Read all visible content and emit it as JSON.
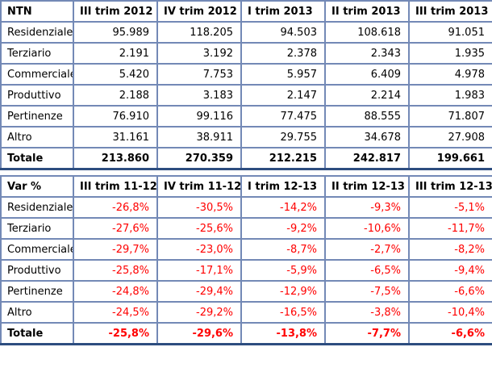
{
  "colors": {
    "border": "#7389b6",
    "outer_bottom_border": "#2d4d7f",
    "text": "#000000",
    "negative_value": "#ff0000",
    "background": "#ffffff"
  },
  "tables": [
    {
      "id": "ntn",
      "title_cell": "NTN",
      "value_color": "#000000",
      "headers": [
        "III trim 2012",
        "IV trim 2012",
        "I trim 2013",
        "II trim 2013",
        "III trim 2013"
      ],
      "rows": [
        {
          "label": "Residenziale",
          "values": [
            "95.989",
            "118.205",
            "94.503",
            "108.618",
            "91.051"
          ],
          "total": false
        },
        {
          "label": "Terziario",
          "values": [
            "2.191",
            "3.192",
            "2.378",
            "2.343",
            "1.935"
          ],
          "total": false
        },
        {
          "label": "Commerciale",
          "values": [
            "5.420",
            "7.753",
            "5.957",
            "6.409",
            "4.978"
          ],
          "total": false
        },
        {
          "label": "Produttivo",
          "values": [
            "2.188",
            "3.183",
            "2.147",
            "2.214",
            "1.983"
          ],
          "total": false
        },
        {
          "label": "Pertinenze",
          "values": [
            "76.910",
            "99.116",
            "77.475",
            "88.555",
            "71.807"
          ],
          "total": false
        },
        {
          "label": "Altro",
          "values": [
            "31.161",
            "38.911",
            "29.755",
            "34.678",
            "27.908"
          ],
          "total": false
        },
        {
          "label": "Totale",
          "values": [
            "213.860",
            "270.359",
            "212.215",
            "242.817",
            "199.661"
          ],
          "total": true
        }
      ]
    },
    {
      "id": "var",
      "title_cell": "Var %",
      "value_color": "#ff0000",
      "headers": [
        "III trim 11-12",
        "IV trim 11-12",
        "I trim 12-13",
        "II trim 12-13",
        "III trim 12-13"
      ],
      "rows": [
        {
          "label": "Residenziale",
          "values": [
            "-26,8%",
            "-30,5%",
            "-14,2%",
            "-9,3%",
            "-5,1%"
          ],
          "total": false
        },
        {
          "label": "Terziario",
          "values": [
            "-27,6%",
            "-25,6%",
            "-9,2%",
            "-10,6%",
            "-11,7%"
          ],
          "total": false
        },
        {
          "label": "Commerciale",
          "values": [
            "-29,7%",
            "-23,0%",
            "-8,7%",
            "-2,7%",
            "-8,2%"
          ],
          "total": false
        },
        {
          "label": "Produttivo",
          "values": [
            "-25,8%",
            "-17,1%",
            "-5,9%",
            "-6,5%",
            "-9,4%"
          ],
          "total": false
        },
        {
          "label": "Pertinenze",
          "values": [
            "-24,8%",
            "-29,4%",
            "-12,9%",
            "-7,5%",
            "-6,6%"
          ],
          "total": false
        },
        {
          "label": "Altro",
          "values": [
            "-24,5%",
            "-29,2%",
            "-16,5%",
            "-3,8%",
            "-10,4%"
          ],
          "total": false
        },
        {
          "label": "Totale",
          "values": [
            "-25,8%",
            "-29,6%",
            "-13,8%",
            "-7,7%",
            "-6,6%"
          ],
          "total": true
        }
      ]
    }
  ],
  "chart_data": [
    {
      "type": "table",
      "title": "NTN",
      "categories": [
        "Residenziale",
        "Terziario",
        "Commerciale",
        "Produttivo",
        "Pertinenze",
        "Altro",
        "Totale"
      ],
      "columns": [
        "III trim 2012",
        "IV trim 2012",
        "I trim 2013",
        "II trim 2013",
        "III trim 2013"
      ],
      "series": [
        {
          "name": "Residenziale",
          "values": [
            95989,
            118205,
            94503,
            108618,
            91051
          ]
        },
        {
          "name": "Terziario",
          "values": [
            2191,
            3192,
            2378,
            2343,
            1935
          ]
        },
        {
          "name": "Commerciale",
          "values": [
            5420,
            7753,
            5957,
            6409,
            4978
          ]
        },
        {
          "name": "Produttivo",
          "values": [
            2188,
            3183,
            2147,
            2214,
            1983
          ]
        },
        {
          "name": "Pertinenze",
          "values": [
            76910,
            99116,
            77475,
            88555,
            71807
          ]
        },
        {
          "name": "Altro",
          "values": [
            31161,
            38911,
            29755,
            34678,
            27908
          ]
        },
        {
          "name": "Totale",
          "values": [
            213860,
            270359,
            212215,
            242817,
            199661
          ]
        }
      ],
      "number_format": "it-IT thousands with dot"
    },
    {
      "type": "table",
      "title": "Var %",
      "categories": [
        "Residenziale",
        "Terziario",
        "Commerciale",
        "Produttivo",
        "Pertinenze",
        "Altro",
        "Totale"
      ],
      "columns": [
        "III trim 11-12",
        "IV trim 11-12",
        "I trim 12-13",
        "II trim 12-13",
        "III trim 12-13"
      ],
      "series": [
        {
          "name": "Residenziale",
          "values": [
            -26.8,
            -30.5,
            -14.2,
            -9.3,
            -5.1
          ]
        },
        {
          "name": "Terziario",
          "values": [
            -27.6,
            -25.6,
            -9.2,
            -10.6,
            -11.7
          ]
        },
        {
          "name": "Commerciale",
          "values": [
            -29.7,
            -23.0,
            -8.7,
            -2.7,
            -8.2
          ]
        },
        {
          "name": "Produttivo",
          "values": [
            -25.8,
            -17.1,
            -5.9,
            -6.5,
            -9.4
          ]
        },
        {
          "name": "Pertinenze",
          "values": [
            -24.8,
            -29.4,
            -12.9,
            -7.5,
            -6.6
          ]
        },
        {
          "name": "Altro",
          "values": [
            -24.5,
            -29.2,
            -16.5,
            -3.8,
            -10.4
          ]
        },
        {
          "name": "Totale",
          "values": [
            -25.8,
            -29.6,
            -13.8,
            -7.7,
            -6.6
          ]
        }
      ],
      "unit": "%",
      "value_color": "#ff0000",
      "number_format": "it-IT decimal comma, percent"
    }
  ]
}
